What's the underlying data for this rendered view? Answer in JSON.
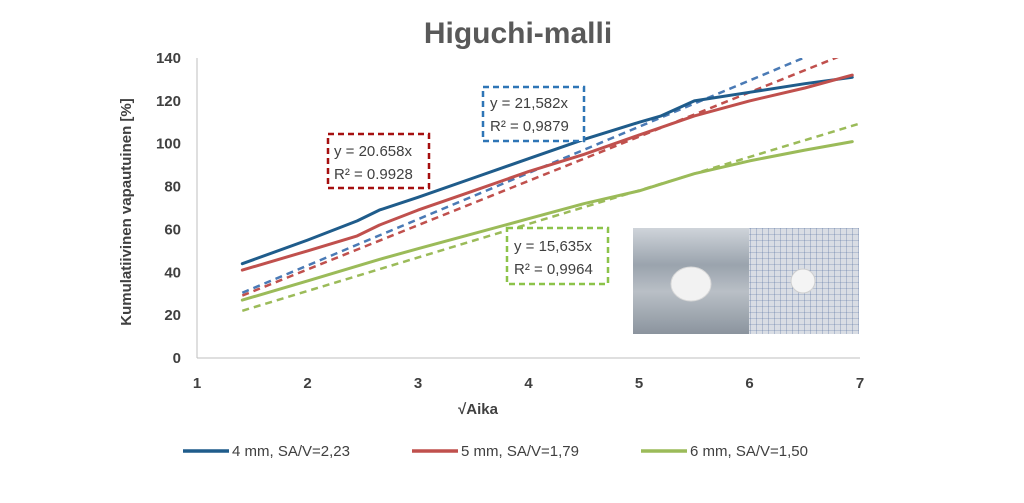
{
  "chart_data": {
    "type": "line",
    "title": "Higuchi-malli",
    "xlabel": "√Aika",
    "ylabel": "Kumulatiivinen vapautuinen [%]",
    "xlim": [
      1,
      7
    ],
    "ylim": [
      0,
      140
    ],
    "xticks": [
      1,
      2,
      3,
      4,
      5,
      6,
      7
    ],
    "yticks": [
      0,
      20,
      40,
      60,
      80,
      100,
      120,
      140
    ],
    "grid": "none",
    "legend_position": "bottom",
    "series": [
      {
        "name": "4 mm, SA/V=2,23",
        "color": "#1f5c8b",
        "x": [
          1.41,
          2.0,
          2.45,
          2.65,
          3.0,
          3.5,
          4.0,
          4.5,
          5.0,
          5.2,
          5.5,
          6.0,
          6.5,
          6.93
        ],
        "y": [
          44,
          55,
          64,
          69,
          75,
          84,
          93,
          102,
          110,
          113,
          120,
          124,
          128,
          131
        ]
      },
      {
        "name": "5 mm, SA/V=1,79",
        "color": "#c0504d",
        "x": [
          1.41,
          2.0,
          2.45,
          2.65,
          3.0,
          3.5,
          4.0,
          4.5,
          5.0,
          5.5,
          6.0,
          6.5,
          6.93
        ],
        "y": [
          41,
          50,
          57,
          62,
          69,
          78,
          87,
          95,
          104,
          113,
          120,
          126,
          132
        ]
      },
      {
        "name": "6 mm, SA/V=1,50",
        "color": "#9bbb59",
        "x": [
          1.41,
          2.0,
          2.65,
          3.0,
          3.5,
          4.0,
          4.5,
          5.0,
          5.5,
          6.0,
          6.5,
          6.93
        ],
        "y": [
          27,
          36,
          46,
          51,
          58,
          65,
          72,
          78,
          86,
          92,
          97,
          101
        ]
      }
    ],
    "trendlines": [
      {
        "series": "4 mm, SA/V=2,23",
        "slope": 21.582,
        "equation": "y = 21,582x",
        "r2": "R² = 0,9879",
        "color": "#4a7ab5"
      },
      {
        "series": "5 mm, SA/V=1,79",
        "slope": 20.658,
        "equation": "y = 20.658x",
        "r2": "R² = 0.9928",
        "color": "#c0504d"
      },
      {
        "series": "6 mm, SA/V=1,50",
        "slope": 15.635,
        "equation": "y = 15,635x",
        "r2": "R² = 0,9964",
        "color": "#9bbb59"
      }
    ]
  }
}
